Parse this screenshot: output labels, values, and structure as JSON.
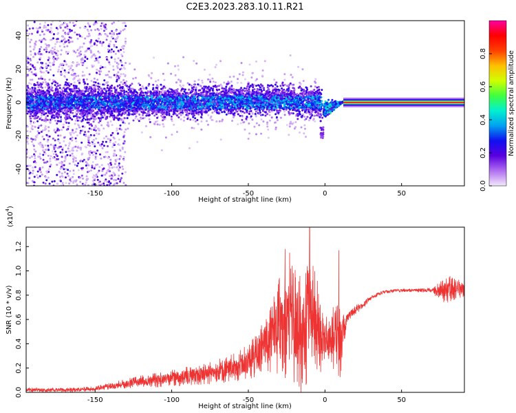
{
  "title": "C2E3.2023.283.10.11.R21",
  "chart_data": [
    {
      "type": "heatmap",
      "xlabel": "Height of straight line (km)",
      "ylabel": "Frequency (Hz)",
      "xlim": [
        -195,
        91
      ],
      "ylim": [
        -50,
        49
      ],
      "xticks": [
        -150,
        -100,
        -50,
        0,
        50
      ],
      "yticks": [
        -40,
        -20,
        0,
        20,
        40
      ],
      "colorbar": {
        "label": "Normalized spectral amplitude",
        "range": [
          0,
          1
        ],
        "ticks": [
          0.0,
          0.2,
          0.4,
          0.6,
          0.8
        ]
      },
      "colormap": [
        "#f3e9fb",
        "#b06ff0",
        "#5a00e0",
        "#1010f0",
        "#00a0f0",
        "#00f0d0",
        "#40ff40",
        "#d0ff00",
        "#ffc000",
        "#ff4000",
        "#ff0000",
        "#ff00a0"
      ],
      "features": {
        "diffuse_scatter_km": [
          -195,
          -130
        ],
        "spectral_band_km": [
          -130,
          -2
        ],
        "band_half_width_hz": [
          10,
          18
        ],
        "converging_tail_km": [
          0,
          12
        ],
        "carrier_line_km": [
          12,
          91
        ],
        "carrier_frequency_hz": 0
      }
    },
    {
      "type": "line",
      "xlabel": "Height of straight line (km)",
      "ylabel": "SNR (10 * v/v)",
      "y_exponent_label": "(x10",
      "y_exponent": "4",
      "y_exponent_close": ")",
      "xlim": [
        -195,
        91
      ],
      "ylim": [
        0,
        1.36
      ],
      "xticks": [
        -150,
        -100,
        -50,
        0,
        50
      ],
      "yticks": [
        0.0,
        0.2,
        0.4,
        0.6,
        0.8,
        1.0,
        1.2
      ],
      "series": [
        {
          "color": "#ee3333",
          "x": [
            -195,
            -180,
            -165,
            -150,
            -140,
            -130,
            -120,
            -110,
            -100,
            -90,
            -80,
            -70,
            -60,
            -50,
            -45,
            -40,
            -35,
            -30,
            -25,
            -20,
            -15,
            -12,
            -10,
            -8,
            -5,
            -2,
            0,
            2,
            5,
            8,
            10,
            12,
            15,
            20,
            25,
            30,
            35,
            40,
            50,
            60,
            70,
            75,
            80,
            85,
            91
          ],
          "values": [
            0.02,
            0.02,
            0.02,
            0.03,
            0.05,
            0.07,
            0.09,
            0.1,
            0.12,
            0.13,
            0.15,
            0.17,
            0.2,
            0.25,
            0.3,
            0.36,
            0.45,
            0.55,
            0.52,
            0.58,
            0.48,
            0.62,
            0.72,
            0.66,
            0.55,
            0.45,
            0.42,
            0.4,
            0.45,
            0.42,
            0.38,
            0.5,
            0.62,
            0.68,
            0.72,
            0.78,
            0.81,
            0.83,
            0.84,
            0.84,
            0.84,
            0.83,
            0.85,
            0.86,
            0.85
          ],
          "spread": [
            0.02,
            0.02,
            0.02,
            0.02,
            0.03,
            0.04,
            0.05,
            0.06,
            0.07,
            0.08,
            0.09,
            0.1,
            0.12,
            0.15,
            0.18,
            0.22,
            0.28,
            0.4,
            0.45,
            0.5,
            0.5,
            0.55,
            0.55,
            0.5,
            0.4,
            0.3,
            0.25,
            0.2,
            0.25,
            0.3,
            0.35,
            0.15,
            0.05,
            0.04,
            0.03,
            0.02,
            0.015,
            0.015,
            0.015,
            0.015,
            0.02,
            0.08,
            0.12,
            0.1,
            0.08
          ]
        }
      ],
      "peaks": [
        {
          "x": -26,
          "y": 1.18
        },
        {
          "x": -23,
          "y": 1.15
        },
        {
          "x": -10,
          "y": 1.36
        },
        {
          "x": 9,
          "y": 1.17
        }
      ]
    }
  ]
}
